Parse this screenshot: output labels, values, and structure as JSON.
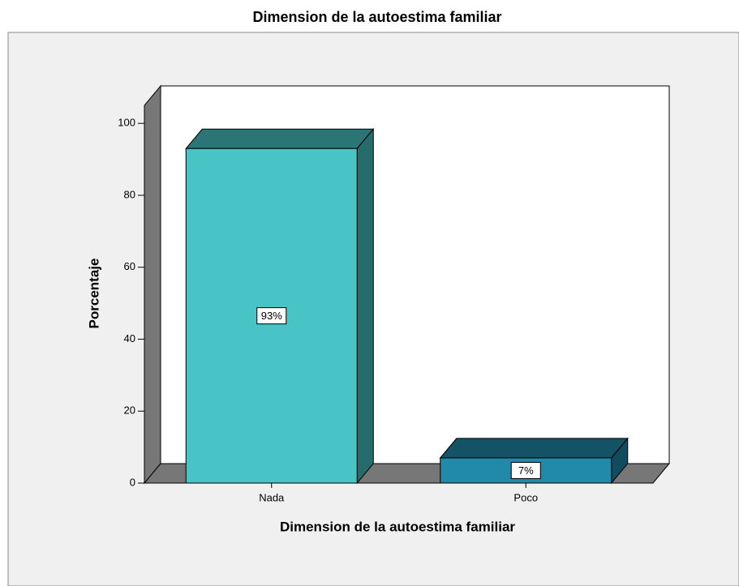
{
  "chart_data": {
    "type": "bar3d",
    "title": "Dimension de la autoestima familiar",
    "x_label": "Dimension de la autoestima familiar",
    "y_label": "Porcentaje",
    "categories": [
      "Nada",
      "Poco"
    ],
    "values": [
      93,
      7
    ],
    "value_labels": [
      "93%",
      "7%"
    ],
    "colors": [
      "#48c3c6",
      "#2189a9"
    ],
    "ylim": [
      0,
      105
    ],
    "yticks": [
      0,
      20,
      40,
      60,
      80,
      100
    ]
  }
}
